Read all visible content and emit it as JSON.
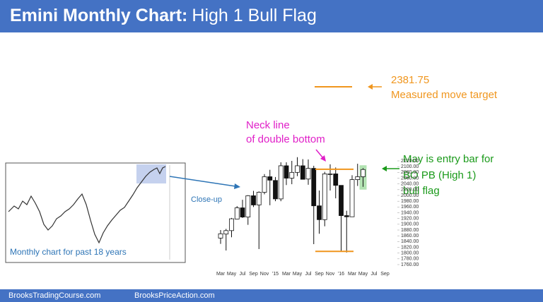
{
  "chart_data": {
    "type": "candlestick",
    "title": "Emini Monthly Chart:",
    "subtitle": "High 1 Bull Flag",
    "categories": [
      "Mar",
      null,
      "May",
      null,
      "Jul",
      null,
      "Sep",
      null,
      "Nov",
      null,
      "'15",
      null,
      "Mar",
      null,
      "May",
      null,
      "Jul",
      null,
      "Sep",
      null,
      "Nov",
      null,
      "'16",
      null,
      "Mar",
      null,
      "May",
      null,
      "Jul",
      null,
      "Sep"
    ],
    "open": [
      1852,
      1866,
      1878,
      1918,
      1957,
      1925,
      1999,
      1967,
      2011,
      2065,
      2052,
      1988,
      2103,
      2060,
      2080,
      2103,
      2057,
      2094,
      1964,
      1916,
      2075,
      2075,
      2035,
      1930,
      1926,
      2055,
      2065,
      null,
      null,
      null,
      null
    ],
    "high": [
      1880,
      1884,
      1922,
      1963,
      1985,
      2001,
      2016,
      2014,
      2074,
      2089,
      2064,
      2115,
      2115,
      2120,
      2133,
      2126,
      2125,
      2103,
      2017,
      2082,
      2108,
      2097,
      2035,
      1947,
      2070,
      2110,
      2095,
      null,
      null,
      null,
      null
    ],
    "low": [
      1832,
      1809,
      1855,
      1917,
      1922,
      1898,
      1960,
      1814,
      2004,
      1966,
      1980,
      1980,
      2036,
      2039,
      2067,
      2056,
      2037,
      1831,
      1867,
      1893,
      2017,
      1990,
      1804,
      1802,
      1926,
      2033,
      2030,
      null,
      null,
      null,
      null
    ],
    "close": [
      1867,
      1878,
      1919,
      1957,
      1925,
      1999,
      1967,
      2011,
      2065,
      2053,
      1988,
      2103,
      2060,
      2080,
      2103,
      2056,
      2094,
      1964,
      1916,
      2075,
      2075,
      2035,
      1930,
      1926,
      2055,
      2065,
      2090,
      null,
      null,
      null,
      null
    ],
    "ylim": [
      1740,
      2140
    ],
    "yticks": [
      {
        "value": 2120,
        "label": "2120.00"
      },
      {
        "value": 2100,
        "label": "2100.00"
      },
      {
        "value": 2080,
        "label": "2080.00"
      },
      {
        "value": 2060,
        "label": "2060.00"
      },
      {
        "value": 2040,
        "label": "2040.00"
      },
      {
        "value": 2020,
        "label": "2020.00"
      },
      {
        "value": 2000,
        "label": "2000.00"
      },
      {
        "value": 1980,
        "label": "1980.00"
      },
      {
        "value": 1960,
        "label": "1960.00"
      },
      {
        "value": 1940,
        "label": "1940.00"
      },
      {
        "value": 1920,
        "label": "1920.00"
      },
      {
        "value": 1900,
        "label": "1900.00"
      },
      {
        "value": 1880,
        "label": "1880.00"
      },
      {
        "value": 1860,
        "label": "1860.00"
      },
      {
        "value": 1840,
        "label": "1840.00"
      },
      {
        "value": 1820,
        "label": "1820.00"
      },
      {
        "value": 1800,
        "label": "1800.00"
      },
      {
        "value": 1780,
        "label": "1780.00"
      },
      {
        "value": 1760,
        "label": "1760.00"
      }
    ],
    "levels": [
      2091,
      1806
    ],
    "level_color": "#f0961e",
    "annotations": {
      "target_value": "2381.75",
      "target_text": "Measured move target",
      "neck_1": "Neck line",
      "neck_2": "of double bottom",
      "entry_1": "May is entry bar for",
      "entry_2": "BO PB (High 1)",
      "entry_3": "bull flag",
      "closeup": "Close-up",
      "inset_caption": "Monthly chart for past 18 years"
    },
    "footer": {
      "left": "BrooksTradingCourse.com",
      "right": "BrooksPriceAction.com"
    }
  }
}
